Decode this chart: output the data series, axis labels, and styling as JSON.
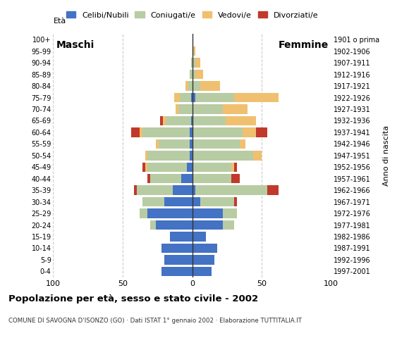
{
  "age_groups": [
    "0-4",
    "5-9",
    "10-14",
    "15-19",
    "20-24",
    "25-29",
    "30-34",
    "35-39",
    "40-44",
    "45-49",
    "50-54",
    "55-59",
    "60-64",
    "65-69",
    "70-74",
    "75-79",
    "80-84",
    "85-89",
    "90-94",
    "95-99",
    "100+"
  ],
  "birth_years": [
    "1997-2001",
    "1992-1996",
    "1987-1991",
    "1982-1986",
    "1977-1981",
    "1972-1976",
    "1967-1971",
    "1962-1966",
    "1957-1961",
    "1952-1956",
    "1947-1951",
    "1942-1946",
    "1937-1941",
    "1932-1936",
    "1927-1931",
    "1922-1926",
    "1917-1921",
    "1912-1916",
    "1907-1911",
    "1902-1906",
    "1901 o prima"
  ],
  "male": {
    "celibe": [
      22,
      20,
      22,
      16,
      26,
      32,
      20,
      14,
      8,
      4,
      2,
      2,
      2,
      1,
      0,
      1,
      0,
      0,
      0,
      0,
      0
    ],
    "coniugato": [
      0,
      0,
      0,
      0,
      4,
      6,
      16,
      26,
      22,
      28,
      30,
      22,
      34,
      18,
      10,
      8,
      3,
      2,
      1,
      0,
      0
    ],
    "vedovo": [
      0,
      0,
      0,
      0,
      0,
      0,
      0,
      0,
      0,
      2,
      2,
      2,
      2,
      2,
      2,
      4,
      2,
      0,
      0,
      0,
      0
    ],
    "divorziato": [
      0,
      0,
      0,
      0,
      0,
      0,
      0,
      2,
      2,
      2,
      0,
      0,
      6,
      2,
      0,
      0,
      0,
      0,
      0,
      0,
      0
    ]
  },
  "female": {
    "celibe": [
      14,
      16,
      18,
      10,
      22,
      22,
      6,
      2,
      0,
      0,
      0,
      0,
      0,
      0,
      0,
      2,
      0,
      0,
      0,
      0,
      0
    ],
    "coniugato": [
      0,
      0,
      0,
      0,
      8,
      10,
      24,
      52,
      28,
      28,
      44,
      34,
      36,
      24,
      22,
      28,
      6,
      2,
      2,
      0,
      0
    ],
    "vedovo": [
      0,
      0,
      0,
      0,
      0,
      0,
      0,
      0,
      0,
      2,
      6,
      4,
      10,
      22,
      18,
      32,
      14,
      6,
      4,
      2,
      0
    ],
    "divorziato": [
      0,
      0,
      0,
      0,
      0,
      0,
      2,
      8,
      6,
      2,
      0,
      0,
      8,
      0,
      0,
      0,
      0,
      0,
      0,
      0,
      0
    ]
  },
  "colors": {
    "celibe": "#4472c4",
    "coniugato": "#b8cca4",
    "vedovo": "#f0c070",
    "divorziato": "#c0392b"
  },
  "xlim": 100,
  "title": "Popolazione per età, sesso e stato civile - 2002",
  "subtitle": "COMUNE DI SAVOGNA D'ISONZO (GO) · Dati ISTAT 1° gennaio 2002 · Elaborazione TUTTITALIA.IT",
  "legend_labels": [
    "Celibi/Nubili",
    "Coniugati/e",
    "Vedovi/e",
    "Divorziati/e"
  ],
  "xlabel_left": "Maschi",
  "xlabel_right": "Femmine",
  "ylabel": "Età",
  "ylabel_right": "Anno di nascita",
  "bg_color": "#ffffff",
  "grid_color": "#cccccc"
}
